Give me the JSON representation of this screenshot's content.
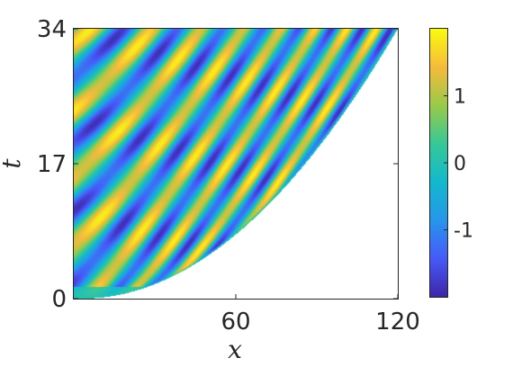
{
  "chart_data": {
    "type": "heatmap",
    "title": "",
    "xlabel": "x",
    "ylabel": "t",
    "xlim": [
      0,
      120
    ],
    "ylim": [
      0,
      34
    ],
    "x_ticks": [
      {
        "value": 60,
        "label": "60"
      },
      {
        "value": 120,
        "label": "120"
      }
    ],
    "y_ticks": [
      {
        "value": 0,
        "label": "0"
      },
      {
        "value": 17,
        "label": "17"
      },
      {
        "value": 34,
        "label": "34"
      }
    ],
    "colorbar": {
      "colormap": "parula",
      "range": [
        -2,
        2
      ],
      "ticks": [
        {
          "value": 1,
          "label": "1"
        },
        {
          "value": 0,
          "label": "0"
        },
        {
          "value": -1,
          "label": "-1"
        }
      ]
    },
    "grid": false,
    "field_description": "wave field confined to left region; right boundary x ≈ 3 + 117·sqrt(t/34); oscillating bands with zero-crossings along x − 3.3·t ≈ const",
    "boundary_samples": [
      {
        "t": 0,
        "x_max": 3
      },
      {
        "t": 4,
        "x_max": 43
      },
      {
        "t": 8.5,
        "x_max": 60
      },
      {
        "t": 17,
        "x_max": 86
      },
      {
        "t": 25.5,
        "x_max": 104
      },
      {
        "t": 34,
        "x_max": 120
      }
    ]
  },
  "colors": {
    "axis": "#262626",
    "background": "#ffffff"
  }
}
